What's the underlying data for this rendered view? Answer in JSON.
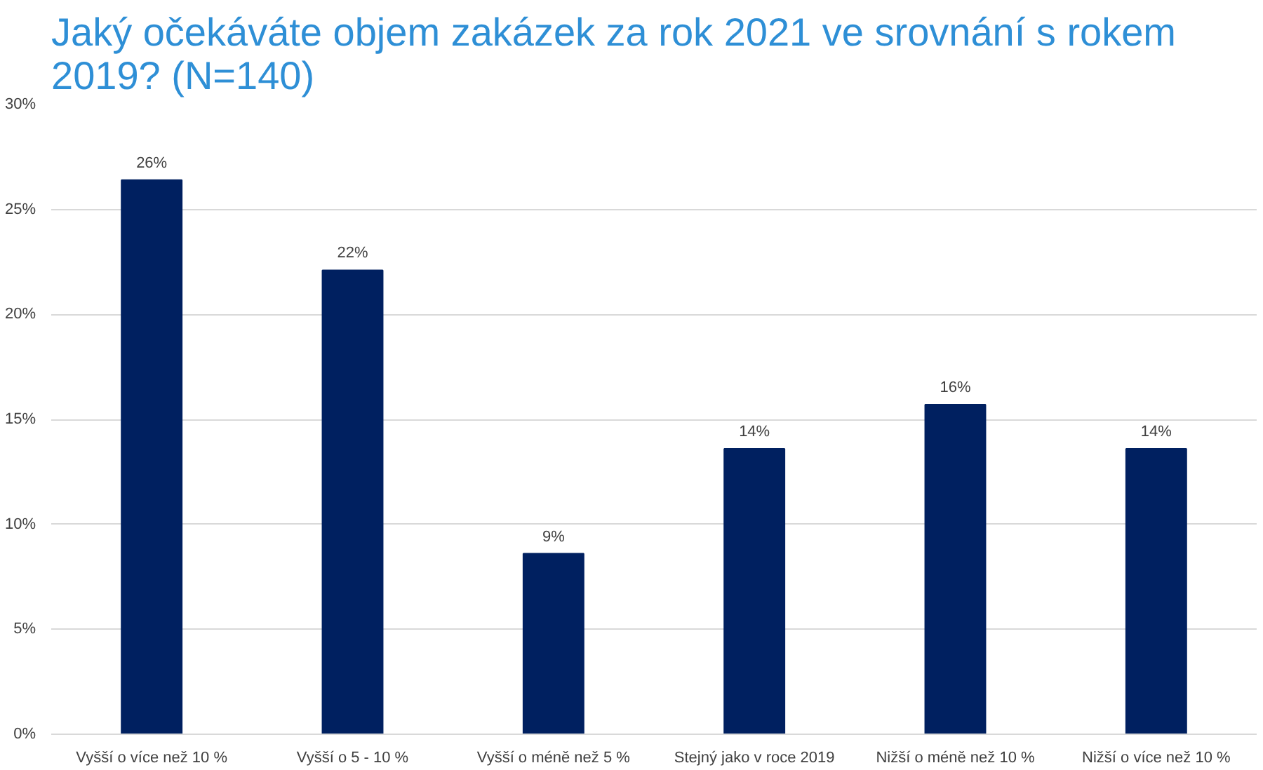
{
  "chart_data": {
    "type": "bar",
    "title": "Jaký očekáváte objem zakázek za rok 2021 ve srovnání s rokem 2019? (N=140)",
    "categories": [
      "Vyšší o více než 10 %",
      "Vyšší o 5 - 10 %",
      "Vyšší o méně než 5 %",
      "Stejný jako v roce 2019",
      "Nižší o méně než 10 %",
      "Nižší o více než 10 %"
    ],
    "values": [
      26.4,
      22.1,
      8.6,
      13.6,
      15.7,
      13.6
    ],
    "value_labels": [
      "26%",
      "22%",
      "9%",
      "14%",
      "16%",
      "14%"
    ],
    "color": "#002060",
    "ylim": [
      0,
      30
    ],
    "yticks": [
      {
        "value": 0,
        "label": "0%"
      },
      {
        "value": 5,
        "label": "5%"
      },
      {
        "value": 10,
        "label": "10%"
      },
      {
        "value": 15,
        "label": "15%"
      },
      {
        "value": 20,
        "label": "20%"
      },
      {
        "value": 25,
        "label": "25%"
      },
      {
        "value": 30,
        "label": "30%"
      }
    ],
    "grid": "y"
  }
}
